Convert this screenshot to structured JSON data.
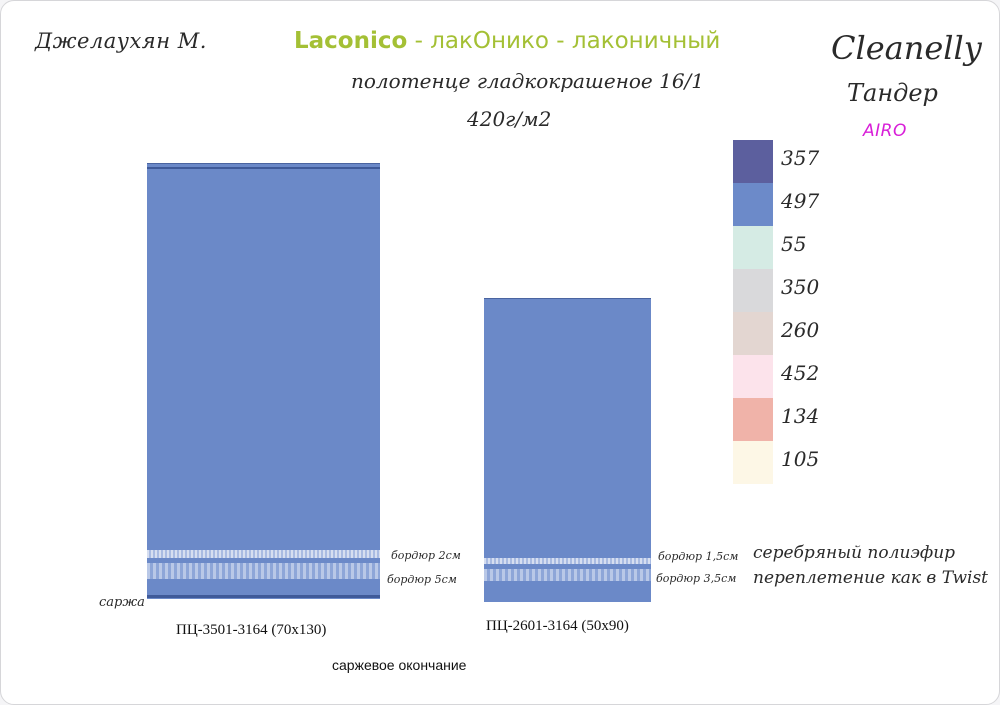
{
  "header": {
    "author": "Джелаухян М.",
    "title_latin": "Laconico",
    "title_rest": " - лакОнико - лаконичный",
    "subtitle": "полотенце гладкокрашеное 16/1",
    "density": "420г/м2",
    "brand": "Cleanelly",
    "series": "Тандер",
    "line": "AIRO"
  },
  "colors": {
    "title": "#a4c035",
    "towel": "#6b89c8",
    "line_label": "#d81ed8"
  },
  "towels": [
    {
      "label": "ПЦ-3501-3164 (70х130)",
      "border_top_note": "бордюр 2см",
      "border_bottom_note": "бордюр 5см",
      "edge_note": "саржа"
    },
    {
      "label": "ПЦ-2601-3164 (50х90)",
      "border_top_note": "бордюр 1,5см",
      "border_bottom_note": "бордюр 3,5см"
    }
  ],
  "weave_note": {
    "line1": "серебряный полиэфир",
    "line2": "переплетение как в Twist"
  },
  "ending": "саржевое окончание",
  "palette": [
    {
      "code": "357",
      "color": "#5c5f9e"
    },
    {
      "code": "497",
      "color": "#6c8ac9"
    },
    {
      "code": "55",
      "color": "#d5ebe4"
    },
    {
      "code": "350",
      "color": "#d9d9db"
    },
    {
      "code": "260",
      "color": "#e3d6d1"
    },
    {
      "code": "452",
      "color": "#fce3eb"
    },
    {
      "code": "134",
      "color": "#f0b3a9"
    },
    {
      "code": "105",
      "color": "#fdf7e6"
    }
  ]
}
